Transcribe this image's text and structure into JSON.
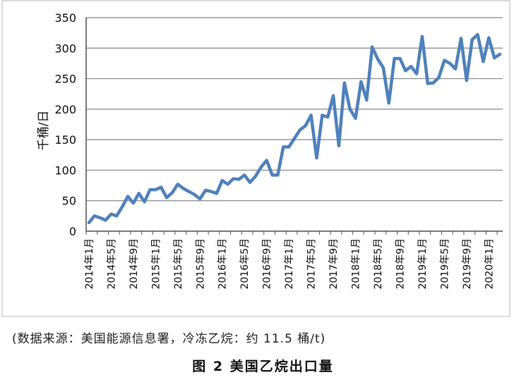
{
  "chart_data": {
    "type": "line",
    "title": "",
    "xlabel": "",
    "ylabel": "千桶/日",
    "ylim": [
      0,
      350
    ],
    "yticks": [
      0,
      50,
      100,
      150,
      200,
      250,
      300,
      350
    ],
    "grid": true,
    "legend": "none",
    "colors": {
      "line": "#4f81bd",
      "grid": "#888888",
      "axis": "#555555"
    },
    "x_tick_labels": [
      "2014年1月",
      "2014年5月",
      "2014年9月",
      "2015年1月",
      "2015年5月",
      "2015年9月",
      "2016年1月",
      "2016年5月",
      "2016年9月",
      "2017年1月",
      "2017年5月",
      "2017年9月",
      "2018年1月",
      "2018年5月",
      "2018年9月",
      "2019年1月",
      "2019年5月",
      "2019年9月",
      "2020年1月"
    ],
    "x": [
      "2014-01",
      "2014-02",
      "2014-03",
      "2014-04",
      "2014-05",
      "2014-06",
      "2014-07",
      "2014-08",
      "2014-09",
      "2014-10",
      "2014-11",
      "2014-12",
      "2015-01",
      "2015-02",
      "2015-03",
      "2015-04",
      "2015-05",
      "2015-06",
      "2015-07",
      "2015-08",
      "2015-09",
      "2015-10",
      "2015-11",
      "2015-12",
      "2016-01",
      "2016-02",
      "2016-03",
      "2016-04",
      "2016-05",
      "2016-06",
      "2016-07",
      "2016-08",
      "2016-09",
      "2016-10",
      "2016-11",
      "2016-12",
      "2017-01",
      "2017-02",
      "2017-03",
      "2017-04",
      "2017-05",
      "2017-06",
      "2017-07",
      "2017-08",
      "2017-09",
      "2017-10",
      "2017-11",
      "2017-12",
      "2018-01",
      "2018-02",
      "2018-03",
      "2018-04",
      "2018-05",
      "2018-06",
      "2018-07",
      "2018-08",
      "2018-09",
      "2018-10",
      "2018-11",
      "2018-12",
      "2019-01",
      "2019-02",
      "2019-03",
      "2019-04",
      "2019-05",
      "2019-06",
      "2019-07",
      "2019-08",
      "2019-09",
      "2019-10",
      "2019-11",
      "2019-12",
      "2020-01",
      "2020-02",
      "2020-03"
    ],
    "series": [
      {
        "values": [
          14,
          25,
          22,
          18,
          28,
          25,
          40,
          57,
          46,
          62,
          48,
          68,
          68,
          72,
          55,
          63,
          77,
          70,
          65,
          60,
          53,
          67,
          65,
          62,
          83,
          77,
          86,
          85,
          92,
          80,
          90,
          105,
          116,
          92,
          92,
          138,
          138,
          152,
          166,
          173,
          190,
          120,
          190,
          187,
          222,
          140,
          243,
          200,
          185,
          245,
          215,
          302,
          282,
          268,
          210,
          283,
          283,
          263,
          270,
          258,
          319,
          242,
          243,
          252,
          280,
          275,
          266,
          316,
          247,
          314,
          322,
          278,
          317,
          284,
          290
        ]
      }
    ]
  },
  "source_note": "(数据来源：美国能源信息署，冷冻乙烷：约 11.5 桶/t)",
  "figure_caption": "图 2  美国乙烷出口量"
}
